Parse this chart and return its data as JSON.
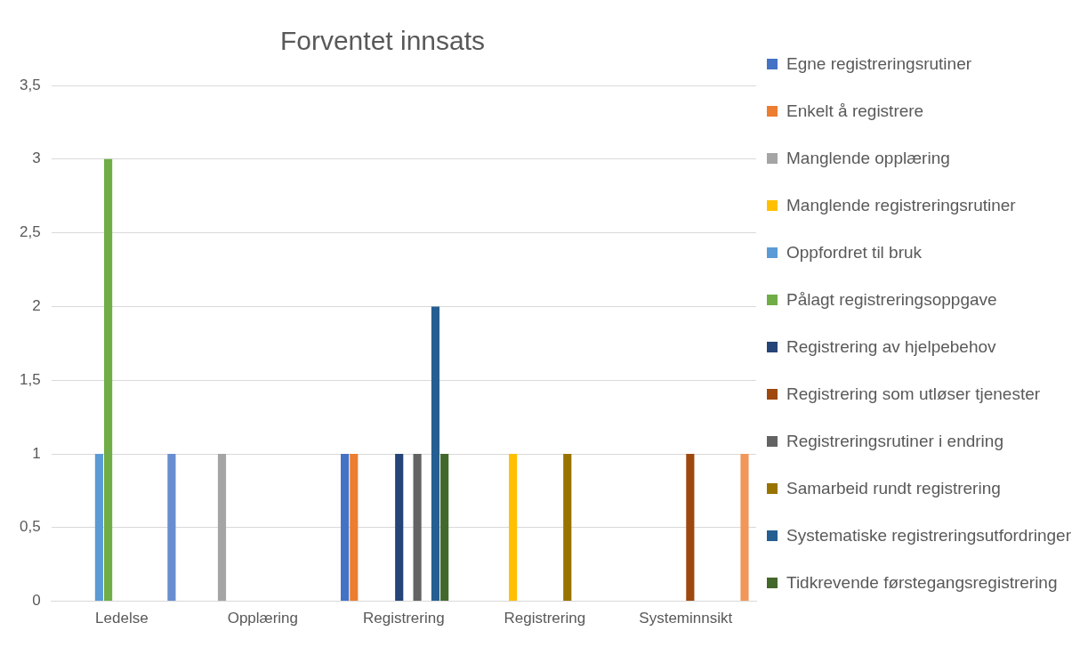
{
  "chart_data": {
    "type": "bar",
    "title": "Forventet innsats",
    "categories": [
      "Ledelse",
      "Opplæring",
      "Registrering",
      "Registrering",
      "Systeminnsikt"
    ],
    "series": [
      {
        "name": "Egne registreringsrutiner",
        "color": "#4472c4",
        "values": [
          null,
          null,
          1,
          null,
          null
        ]
      },
      {
        "name": "Enkelt å registrere",
        "color": "#ed7d31",
        "values": [
          null,
          null,
          1,
          null,
          null
        ]
      },
      {
        "name": "Manglende opplæring",
        "color": "#a5a5a5",
        "values": [
          null,
          1,
          null,
          null,
          null
        ]
      },
      {
        "name": "Manglende registreringsrutiner",
        "color": "#ffc000",
        "values": [
          null,
          null,
          null,
          1,
          null
        ]
      },
      {
        "name": "Oppfordret til bruk",
        "color": "#5b9bd5",
        "values": [
          1,
          null,
          null,
          null,
          null
        ]
      },
      {
        "name": "Pålagt registreringsoppgave",
        "color": "#70ad47",
        "values": [
          3,
          null,
          null,
          null,
          null
        ]
      },
      {
        "name": "Registrering av hjelpebehov",
        "color": "#264478",
        "values": [
          null,
          null,
          1,
          null,
          null
        ]
      },
      {
        "name": "Registrering som utløser tjenester",
        "color": "#9e480e",
        "values": [
          null,
          null,
          null,
          null,
          1
        ]
      },
      {
        "name": "Registreringsrutiner i endring",
        "color": "#636363",
        "values": [
          null,
          null,
          1,
          null,
          null
        ]
      },
      {
        "name": "Samarbeid rundt registrering",
        "color": "#997300",
        "values": [
          null,
          null,
          null,
          1,
          null
        ]
      },
      {
        "name": "Systematiske registreringsutfordringer",
        "color": "#255e91",
        "values": [
          null,
          null,
          2,
          null,
          null
        ]
      },
      {
        "name": "Tidkrevende førstegangsregistrering",
        "color": "#43682b",
        "values": [
          null,
          null,
          1,
          null,
          null
        ]
      },
      {
        "color": "#698ed0",
        "values": [
          1,
          null,
          null,
          null,
          null
        ]
      },
      {
        "color": "#f1975a",
        "values": [
          null,
          null,
          null,
          null,
          1
        ]
      }
    ],
    "ylim": [
      0,
      3.5
    ],
    "yticks": [
      0,
      {
        "value": 0.5,
        "label": "0,5"
      },
      1,
      {
        "value": 1.5,
        "label": "1,5"
      },
      2,
      {
        "value": 2.5,
        "label": "2,5"
      },
      3,
      {
        "value": 3.5,
        "label": "3,5"
      }
    ],
    "grid": "y",
    "legend": "right"
  }
}
